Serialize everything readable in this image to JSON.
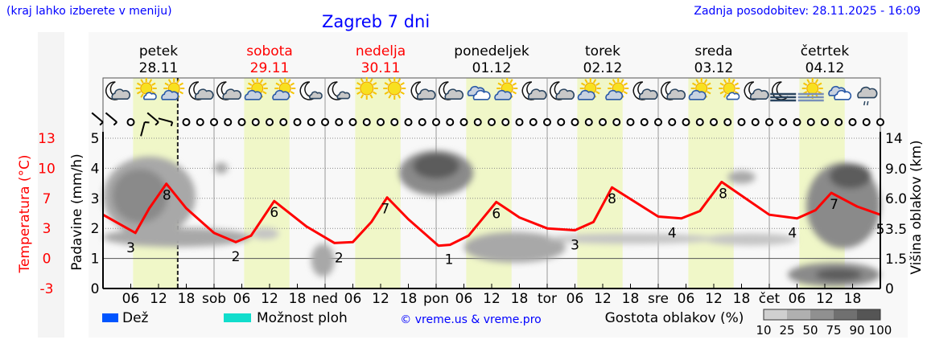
{
  "header": {
    "hint": "(kraj lahko izberete v meniju)",
    "title": "Zagreb 7 dni",
    "updated": "Zadnja posodobitev: 28.11.2025 - 16:09"
  },
  "days": [
    {
      "name": "petek",
      "date": "28.11",
      "weekend": false
    },
    {
      "name": "sobota",
      "date": "29.11",
      "weekend": true
    },
    {
      "name": "nedelja",
      "date": "30.11",
      "weekend": true
    },
    {
      "name": "ponedeljek",
      "date": "01.12",
      "weekend": false
    },
    {
      "name": "torek",
      "date": "02.12",
      "weekend": false
    },
    {
      "name": "sreda",
      "date": "03.12",
      "weekend": false
    },
    {
      "name": "četrtek",
      "date": "04.12",
      "weekend": false
    }
  ],
  "colors": {
    "temperature": "#ff0000",
    "rain": "#0055ff",
    "showers": "#11ddcc",
    "daylight": "#f0f7c8",
    "text_blue": "#0000ff",
    "weekend": "#ff0000"
  },
  "chart_data": {
    "type": "line",
    "x_unit": "hours from 28.11 00:00",
    "x_tick_labels": [
      "06",
      "12",
      "18",
      "sob",
      "06",
      "12",
      "18",
      "ned",
      "06",
      "12",
      "18",
      "pon",
      "06",
      "12",
      "18",
      "tor",
      "06",
      "12",
      "18",
      "sre",
      "06",
      "12",
      "18",
      "čet",
      "06",
      "12",
      "18"
    ],
    "left_axis": {
      "label": "Padavine (mm/h)",
      "ticks": [
        "0",
        "1",
        "2",
        "3",
        "4",
        "5"
      ],
      "range": [
        0,
        5
      ]
    },
    "temp_axis": {
      "label": "Temperatura (°C)",
      "ticks": [
        "-3",
        "0",
        "3",
        "7",
        "10",
        "13"
      ],
      "range": [
        -3.3,
        13.2
      ]
    },
    "right_axis": {
      "label": "Višina oblakov (km)",
      "ticks": [
        "0",
        "1.5",
        "3.5",
        "6.0",
        "9.0",
        "14"
      ]
    },
    "current_time": "16:09",
    "daylight": [
      [
        6.5,
        16.3
      ],
      [
        30.5,
        40.3
      ],
      [
        54.5,
        64.3
      ],
      [
        78.5,
        88.3
      ],
      [
        102.5,
        112.3
      ],
      [
        126.5,
        136.3
      ],
      [
        150.5,
        160.3
      ]
    ],
    "temperature": [
      [
        0,
        4.8
      ],
      [
        7,
        2.8
      ],
      [
        10,
        5.5
      ],
      [
        13.7,
        8.2
      ],
      [
        18,
        5.5
      ],
      [
        24,
        2.8
      ],
      [
        28.7,
        1.8
      ],
      [
        32,
        2.5
      ],
      [
        37,
        6.3
      ],
      [
        44,
        3.5
      ],
      [
        50,
        1.7
      ],
      [
        54,
        1.8
      ],
      [
        58,
        4
      ],
      [
        61.4,
        6.7
      ],
      [
        66,
        4.3
      ],
      [
        72.5,
        1.4
      ],
      [
        75,
        1.5
      ],
      [
        79,
        2.5
      ],
      [
        85,
        6.2
      ],
      [
        90,
        4.5
      ],
      [
        96,
        3.3
      ],
      [
        102,
        3.1
      ],
      [
        106,
        4
      ],
      [
        110,
        7.8
      ],
      [
        120,
        4.6
      ],
      [
        125,
        4.4
      ],
      [
        129,
        5.2
      ],
      [
        133.7,
        8.4
      ],
      [
        144,
        4.8
      ],
      [
        150,
        4.4
      ],
      [
        154,
        5.3
      ],
      [
        157.4,
        7.2
      ],
      [
        163,
        5.7
      ],
      [
        168,
        4.8
      ]
    ],
    "temperature_labels": [
      {
        "t": 6,
        "v": "3"
      },
      {
        "t": 13.8,
        "v": "8"
      },
      {
        "t": 28.7,
        "v": "2"
      },
      {
        "t": 37,
        "v": "6"
      },
      {
        "t": 51,
        "v": "2"
      },
      {
        "t": 61,
        "v": "7"
      },
      {
        "t": 74.8,
        "v": "1"
      },
      {
        "t": 85,
        "v": "6"
      },
      {
        "t": 102,
        "v": "3"
      },
      {
        "t": 110,
        "v": "8"
      },
      {
        "t": 123,
        "v": "4"
      },
      {
        "t": 134,
        "v": "8"
      },
      {
        "t": 149,
        "v": "4"
      },
      {
        "t": 158,
        "v": "7"
      },
      {
        "t": 168,
        "v": "5"
      }
    ],
    "precipitation": [],
    "cloud_density": [
      {
        "t": [
          0,
          20
        ],
        "km": [
          3.0,
          11
        ],
        "pct": 50
      },
      {
        "t": [
          2,
          14
        ],
        "km": [
          4,
          9
        ],
        "pct": 75
      },
      {
        "t": [
          0,
          32
        ],
        "km": [
          2.3,
          3.6
        ],
        "pct": 50
      },
      {
        "t": [
          24,
          27
        ],
        "km": [
          8.5,
          10
        ],
        "pct": 50
      },
      {
        "t": [
          32,
          38
        ],
        "km": [
          2.8,
          3.6
        ],
        "pct": 25
      },
      {
        "t": [
          45,
          50
        ],
        "km": [
          0.6,
          2.5
        ],
        "pct": 50
      },
      {
        "t": [
          64,
          80
        ],
        "km": [
          6.3,
          12
        ],
        "pct": 75
      },
      {
        "t": [
          67,
          77
        ],
        "km": [
          8,
          11.5
        ],
        "pct": 90
      },
      {
        "t": [
          78,
          100
        ],
        "km": [
          1.3,
          3.3
        ],
        "pct": 50
      },
      {
        "t": [
          96,
          132
        ],
        "km": [
          2.5,
          3.2
        ],
        "pct": 25
      },
      {
        "t": [
          130,
          150
        ],
        "km": [
          2.4,
          3.2
        ],
        "pct": 25
      },
      {
        "t": [
          135,
          141
        ],
        "km": [
          7.5,
          8.8
        ],
        "pct": 50
      },
      {
        "t": [
          152,
          168
        ],
        "km": [
          2.2,
          10
        ],
        "pct": 75
      },
      {
        "t": [
          157,
          166
        ],
        "km": [
          7,
          9.8
        ],
        "pct": 90
      },
      {
        "t": [
          148,
          168
        ],
        "km": [
          0.1,
          1.3
        ],
        "pct": 75
      },
      {
        "t": [
          154,
          164
        ],
        "km": [
          0.4,
          1
        ],
        "pct": 90
      }
    ],
    "weather_icons": [
      "moon-cloud",
      "sun-small-cloud",
      "sun-cloud",
      "moon-cloud",
      "moon-cloud",
      "sun-cloud",
      "sun-cloud",
      "moon-small-cloud",
      "moon-small-cloud",
      "sun",
      "sun",
      "moon-cloud",
      "moon-cloud",
      "cloudy",
      "sun-cloud",
      "moon-cloud",
      "moon-cloud",
      "sun-cloud",
      "sun-cloud",
      "moon-cloud",
      "moon-cloud",
      "sun-cloud",
      "sun-small-cloud",
      "moon-cloud",
      "moon-fog",
      "sun-fog",
      "cloudy",
      "cloudy-drizzle"
    ],
    "wind": [
      "barb-sw",
      "barb-sw",
      "calm",
      "barb-n",
      "barb-sw",
      "barb-w",
      "calm",
      "calm",
      "calm",
      "calm",
      "calm",
      "calm",
      "calm",
      "calm",
      "calm",
      "calm",
      "calm",
      "calm",
      "calm",
      "calm",
      "calm",
      "calm",
      "calm",
      "calm",
      "calm",
      "calm",
      "calm",
      "calm",
      "calm",
      "calm",
      "calm",
      "calm",
      "calm",
      "calm",
      "calm",
      "calm",
      "calm",
      "calm",
      "calm",
      "calm",
      "calm",
      "calm",
      "calm",
      "calm",
      "calm",
      "calm",
      "calm",
      "calm",
      "calm",
      "calm",
      "calm",
      "calm",
      "calm",
      "calm",
      "calm",
      "calm",
      "calm"
    ]
  },
  "legend": {
    "rain": "Dež",
    "showers": "Možnost ploh",
    "copyright": "© vreme.us & vreme.pro",
    "cloud_density_label": "Gostota oblakov (%)",
    "cloud_scale": [
      "10",
      "25",
      "50",
      "75",
      "90",
      "100"
    ],
    "cloud_scale_colors": [
      "#d0d0d0",
      "#b0b0b0",
      "#909090",
      "#707070",
      "#555555"
    ]
  }
}
